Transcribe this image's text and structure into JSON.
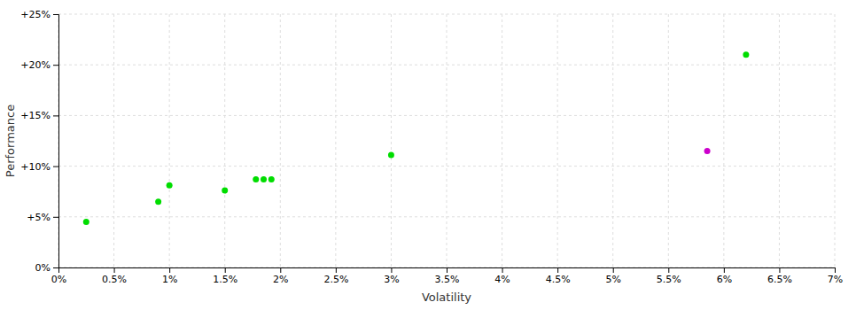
{
  "chart_data": {
    "type": "scatter",
    "xlabel": "Volatility",
    "ylabel": "Performance",
    "series": [
      {
        "color": "#00dd00",
        "x": [
          0.25,
          0.9,
          1.0,
          1.5,
          1.78,
          1.85,
          1.92,
          3.0,
          6.2
        ],
        "values": [
          4.5,
          6.5,
          8.1,
          7.6,
          8.7,
          8.7,
          8.7,
          11.1,
          21.0
        ]
      },
      {
        "color": "#cc00cc",
        "x": [
          5.85
        ],
        "values": [
          11.5
        ]
      }
    ],
    "xlim": [
      0,
      7
    ],
    "ylim": [
      0,
      25
    ],
    "xticks": [
      {
        "value": 0,
        "label": "0%"
      },
      {
        "value": 0.5,
        "label": "0.5%"
      },
      {
        "value": 1.0,
        "label": "1%"
      },
      {
        "value": 1.5,
        "label": "1.5%"
      },
      {
        "value": 2.0,
        "label": "2%"
      },
      {
        "value": 2.5,
        "label": "2.5%"
      },
      {
        "value": 3.0,
        "label": "3%"
      },
      {
        "value": 3.5,
        "label": "3.5%"
      },
      {
        "value": 4.0,
        "label": "4%"
      },
      {
        "value": 4.5,
        "label": "4.5%"
      },
      {
        "value": 5.0,
        "label": "5%"
      },
      {
        "value": 5.5,
        "label": "5.5%"
      },
      {
        "value": 6.0,
        "label": "6%"
      },
      {
        "value": 6.5,
        "label": "6.5%"
      },
      {
        "value": 7.0,
        "label": "7%"
      }
    ],
    "yticks": [
      {
        "value": 0,
        "label": "0%"
      },
      {
        "value": 5,
        "label": "+5%"
      },
      {
        "value": 10,
        "label": "+10%"
      },
      {
        "value": 15,
        "label": "+15%"
      },
      {
        "value": 20,
        "label": "+20%"
      },
      {
        "value": 25,
        "label": "+25%"
      }
    ],
    "grid": true
  }
}
